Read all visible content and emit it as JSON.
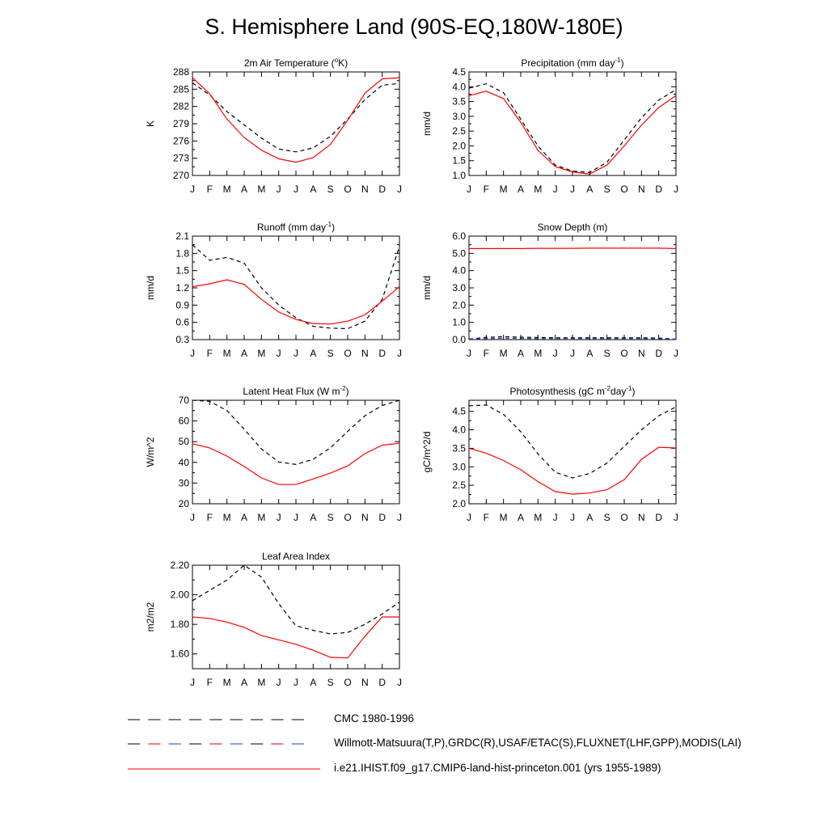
{
  "title": "S. Hemisphere Land (90S-EQ,180W-180E)",
  "chart_data": [
    {
      "type": "line",
      "title": "2m Air Temperature (°K)",
      "title_parts": [
        "2m Air Temperature (",
        "o",
        "K)"
      ],
      "ylabel": "K",
      "ylim": [
        270,
        288
      ],
      "yticks": [
        270,
        273,
        276,
        279,
        282,
        285,
        288
      ],
      "ytick_labels": [
        "270",
        "273",
        "276",
        "279",
        "282",
        "285",
        "288"
      ],
      "categories": [
        "J",
        "F",
        "M",
        "A",
        "M",
        "J",
        "J",
        "A",
        "S",
        "O",
        "N",
        "D",
        "J"
      ],
      "series": [
        {
          "name": "Willmott-Matsuura(T,P),GRDC(R),USAF/ETAC(S),FLUXNET(LHF,GPP),MODIS(LAI)",
          "color": "#000000",
          "dash": true,
          "values": [
            286.1,
            284.0,
            281.1,
            278.8,
            276.5,
            274.6,
            274.1,
            274.8,
            276.8,
            279.8,
            283.2,
            285.7,
            286.0
          ]
        },
        {
          "name": "i.e21.IHIST.f09_g17.CMIP6-land-hist-princeton.001 (yrs 1955-1989)",
          "color": "#ff0000",
          "dash": false,
          "values": [
            287.0,
            284.2,
            279.8,
            276.6,
            274.4,
            272.9,
            272.3,
            273.1,
            275.4,
            279.6,
            284.3,
            286.8,
            287.0
          ]
        }
      ]
    },
    {
      "type": "line",
      "title": "Precipitation (mm day⁻¹)",
      "title_parts": [
        "Precipitation (mm day",
        "-1",
        ")"
      ],
      "ylabel": "mm/d",
      "ylim": [
        1.0,
        4.5
      ],
      "yticks": [
        1.0,
        1.5,
        2.0,
        2.5,
        3.0,
        3.5,
        4.0,
        4.5
      ],
      "ytick_labels": [
        "1.0",
        "1.5",
        "2.0",
        "2.5",
        "3.0",
        "3.5",
        "4.0",
        "4.5"
      ],
      "categories": [
        "J",
        "F",
        "M",
        "A",
        "M",
        "J",
        "J",
        "A",
        "S",
        "O",
        "N",
        "D",
        "J"
      ],
      "series": [
        {
          "name": "Willmott-Matsuura(T,P),GRDC(R),USAF/ETAC(S),FLUXNET(LHF,GPP),MODIS(LAI)",
          "color": "#000000",
          "dash": true,
          "values": [
            3.95,
            4.1,
            3.8,
            2.9,
            2.0,
            1.35,
            1.15,
            1.1,
            1.45,
            2.2,
            2.95,
            3.55,
            3.9
          ]
        },
        {
          "name": "i.e21.IHIST.f09_g17.CMIP6-land-hist-princeton.001 (yrs 1955-1989)",
          "color": "#ff0000",
          "dash": false,
          "values": [
            3.7,
            3.85,
            3.6,
            2.8,
            1.85,
            1.3,
            1.12,
            1.05,
            1.35,
            2.0,
            2.7,
            3.3,
            3.7
          ]
        }
      ]
    },
    {
      "type": "line",
      "title": "Runoff (mm day⁻¹)",
      "title_parts": [
        "Runoff (mm day",
        "-1",
        ")"
      ],
      "ylabel": "mm/d",
      "ylim": [
        0.3,
        2.1
      ],
      "yticks": [
        0.3,
        0.6,
        0.9,
        1.2,
        1.5,
        1.8,
        2.1
      ],
      "ytick_labels": [
        "0.3",
        "0.6",
        "0.9",
        "1.2",
        "1.5",
        "1.8",
        "2.1"
      ],
      "categories": [
        "J",
        "F",
        "M",
        "A",
        "M",
        "J",
        "J",
        "A",
        "S",
        "O",
        "N",
        "D",
        "J"
      ],
      "series": [
        {
          "name": "Willmott-Matsuura(T,P),GRDC(R),USAF/ETAC(S),FLUXNET(LHF,GPP),MODIS(LAI)",
          "color": "#000000",
          "dash": true,
          "values": [
            1.95,
            1.68,
            1.73,
            1.63,
            1.2,
            0.9,
            0.68,
            0.53,
            0.5,
            0.49,
            0.62,
            1.0,
            1.92
          ]
        },
        {
          "name": "i.e21.IHIST.f09_g17.CMIP6-land-hist-princeton.001 (yrs 1955-1989)",
          "color": "#ff0000",
          "dash": false,
          "values": [
            1.22,
            1.27,
            1.34,
            1.26,
            1.0,
            0.78,
            0.65,
            0.58,
            0.57,
            0.62,
            0.73,
            0.97,
            1.22
          ]
        }
      ]
    },
    {
      "type": "line",
      "title": "Snow Depth (m)",
      "title_parts": [
        "Snow Depth (m)",
        "",
        ""
      ],
      "ylabel": "mm/d",
      "ylim": [
        0.0,
        6.0
      ],
      "yticks": [
        0.0,
        1.0,
        2.0,
        3.0,
        4.0,
        5.0,
        6.0
      ],
      "ytick_labels": [
        "0.0",
        "1.0",
        "2.0",
        "3.0",
        "4.0",
        "5.0",
        "6.0"
      ],
      "categories": [
        "J",
        "F",
        "M",
        "A",
        "M",
        "J",
        "J",
        "A",
        "S",
        "O",
        "N",
        "D",
        "J"
      ],
      "series": [
        {
          "name": "CMC 1980-1996",
          "color": "#000000",
          "dash": true,
          "values": [
            0.03,
            0.13,
            0.17,
            0.14,
            0.12,
            0.11,
            0.11,
            0.11,
            0.11,
            0.11,
            0.11,
            0.09,
            0.03
          ]
        },
        {
          "name": "Willmott-Matsuura(T,P),GRDC(R),USAF/ETAC(S),FLUXNET(LHF,GPP),MODIS(LAI)",
          "color": "#1a3ccc",
          "dash": true,
          "values": [
            0.02,
            0.06,
            0.08,
            0.07,
            0.06,
            0.06,
            0.06,
            0.06,
            0.06,
            0.06,
            0.06,
            0.05,
            0.02
          ]
        },
        {
          "name": "i.e21.IHIST.f09_g17.CMIP6-land-hist-princeton.001 (yrs 1955-1989)",
          "color": "#ff0000",
          "dash": false,
          "values": [
            5.28,
            5.28,
            5.28,
            5.28,
            5.29,
            5.29,
            5.29,
            5.3,
            5.3,
            5.3,
            5.3,
            5.3,
            5.28
          ]
        }
      ]
    },
    {
      "type": "line",
      "title": "Latent Heat Flux (W m⁻²)",
      "title_parts": [
        "Latent Heat Flux (W m",
        "-2",
        ")"
      ],
      "ylabel": "W/m^2",
      "ylim": [
        20,
        70
      ],
      "yticks": [
        20,
        30,
        40,
        50,
        60,
        70
      ],
      "ytick_labels": [
        "20",
        "30",
        "40",
        "50",
        "60",
        "70"
      ],
      "categories": [
        "J",
        "F",
        "M",
        "A",
        "M",
        "J",
        "J",
        "A",
        "S",
        "O",
        "N",
        "D",
        "J"
      ],
      "series": [
        {
          "name": "Willmott-Matsuura(T,P),GRDC(R),USAF/ETAC(S),FLUXNET(LHF,GPP),MODIS(LAI)",
          "color": "#000000",
          "dash": true,
          "values": [
            70,
            69.5,
            65,
            56,
            46.5,
            40.2,
            39,
            41.5,
            47,
            55,
            62.5,
            67.5,
            70
          ]
        },
        {
          "name": "i.e21.IHIST.f09_g17.CMIP6-land-hist-princeton.001 (yrs 1955-1989)",
          "color": "#ff0000",
          "dash": false,
          "values": [
            49,
            47,
            43,
            38,
            32.5,
            29.3,
            29.3,
            32,
            34.8,
            38.3,
            44.2,
            48.3,
            49.2
          ]
        }
      ]
    },
    {
      "type": "line",
      "title": "Photosynthesis (gC m⁻²day⁻¹)",
      "title_parts": [
        "Photosynthesis (gC m",
        "-2",
        "day",
        "-1",
        ")"
      ],
      "ylabel": "gC/m^2/d",
      "ylim": [
        2.0,
        4.8
      ],
      "yticks": [
        2.0,
        2.5,
        3.0,
        3.5,
        4.0,
        4.5
      ],
      "ytick_labels": [
        "2.0",
        "2.5",
        "3.0",
        "3.5",
        "4.0",
        "4.5"
      ],
      "categories": [
        "J",
        "F",
        "M",
        "A",
        "M",
        "J",
        "J",
        "A",
        "S",
        "O",
        "N",
        "D",
        "J"
      ],
      "series": [
        {
          "name": "Willmott-Matsuura(T,P),GRDC(R),USAF/ETAC(S),FLUXNET(LHF,GPP),MODIS(LAI)",
          "color": "#000000",
          "dash": true,
          "values": [
            4.65,
            4.67,
            4.42,
            3.95,
            3.35,
            2.85,
            2.7,
            2.82,
            3.1,
            3.55,
            4.0,
            4.38,
            4.62
          ]
        },
        {
          "name": "i.e21.IHIST.f09_g17.CMIP6-land-hist-princeton.001 (yrs 1955-1989)",
          "color": "#ff0000",
          "dash": false,
          "values": [
            3.5,
            3.37,
            3.17,
            2.92,
            2.6,
            2.33,
            2.26,
            2.29,
            2.38,
            2.65,
            3.2,
            3.53,
            3.51
          ]
        }
      ]
    },
    {
      "type": "line",
      "title": "Leaf Area Index",
      "title_parts": [
        "Leaf Area Index",
        "",
        ""
      ],
      "ylabel": "m2/m2",
      "ylim": [
        1.5,
        2.2
      ],
      "yticks": [
        1.6,
        1.8,
        2.0,
        2.2
      ],
      "ytick_labels": [
        "1.60",
        "1.80",
        "2.00",
        "2.20"
      ],
      "categories": [
        "J",
        "F",
        "M",
        "A",
        "M",
        "J",
        "J",
        "A",
        "S",
        "O",
        "N",
        "D",
        "J"
      ],
      "series": [
        {
          "name": "Willmott-Matsuura(T,P),GRDC(R),USAF/ETAC(S),FLUXNET(LHF,GPP),MODIS(LAI)",
          "color": "#000000",
          "dash": true,
          "values": [
            1.96,
            2.03,
            2.1,
            2.2,
            2.12,
            1.94,
            1.79,
            1.76,
            1.735,
            1.745,
            1.8,
            1.87,
            1.95
          ]
        },
        {
          "name": "i.e21.IHIST.f09_g17.CMIP6-land-hist-princeton.001 (yrs 1955-1989)",
          "color": "#ff0000",
          "dash": false,
          "values": [
            1.85,
            1.84,
            1.815,
            1.78,
            1.725,
            1.695,
            1.665,
            1.625,
            1.577,
            1.573,
            1.72,
            1.85,
            1.85
          ]
        }
      ]
    }
  ],
  "legend": [
    {
      "label": "CMC 1980-1996",
      "colors": [
        "#000000"
      ],
      "dash": true
    },
    {
      "label": "Willmott-Matsuura(T,P),GRDC(R),USAF/ETAC(S),FLUXNET(LHF,GPP),MODIS(LAI)",
      "colors": [
        "#000000",
        "#cc0000",
        "#1a3ccc"
      ],
      "dash": true
    },
    {
      "label": "i.e21.IHIST.f09_g17.CMIP6-land-hist-princeton.001 (yrs 1955-1989)",
      "colors": [
        "#ff0000"
      ],
      "dash": false
    }
  ]
}
